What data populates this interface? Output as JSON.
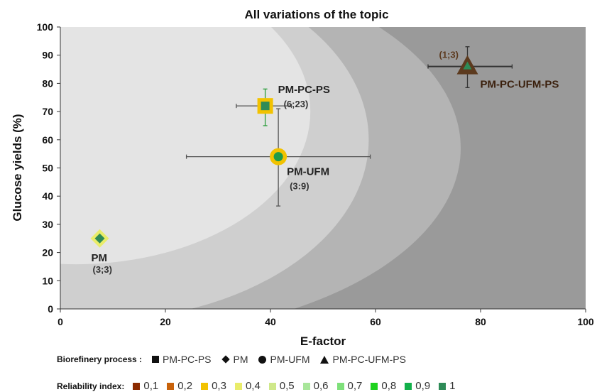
{
  "chart_data": {
    "type": "scatter",
    "title": "All variations of the topic",
    "xlabel": "E-factor",
    "ylabel": "Glucose yields (%)",
    "xlim": [
      0,
      100
    ],
    "ylim": [
      0,
      100
    ],
    "x_ticks": [
      "0",
      "20",
      "40",
      "60",
      "80",
      "100"
    ],
    "y_ticks": [
      "0",
      "10",
      "20",
      "30",
      "40",
      "50",
      "60",
      "70",
      "80",
      "90",
      "100"
    ],
    "grid": false,
    "background_zones": [
      "#9a9a9a",
      "#b4b4b4",
      "#cfcfcf",
      "#e4e4e4"
    ],
    "points": [
      {
        "label": "PM-PC-PS",
        "annotation": "(6;23)",
        "marker": "square",
        "x": 39,
        "y": 72,
        "x_err": [
          33.5,
          44
        ],
        "y_err": [
          65,
          78
        ],
        "fill": "#2e8b57",
        "halo": "#f2c200"
      },
      {
        "label": "PM",
        "annotation": "(3;3)",
        "marker": "diamond",
        "x": 7.5,
        "y": 25,
        "fill": "#2e8b57",
        "halo": "#e9ec6a"
      },
      {
        "label": "PM-UFM",
        "annotation": "(3:9)",
        "marker": "circle",
        "x": 41.5,
        "y": 54,
        "x_err": [
          24,
          59
        ],
        "y_err": [
          36.5,
          71
        ],
        "fill": "#1f9b4a",
        "halo": "#f2c200"
      },
      {
        "label": "PM-PC-UFM-PS",
        "annotation": "(1;3)",
        "marker": "triangle",
        "x": 77.5,
        "y": 86,
        "x_err": [
          70,
          86
        ],
        "y_err": [
          78.5,
          93
        ],
        "fill": "#5c3a1e",
        "inner": "#2e8b57"
      }
    ],
    "legend_process": {
      "title": "Biorefinery process :",
      "entries": [
        {
          "marker": "square",
          "label": "PM-PC-PS"
        },
        {
          "marker": "diamond",
          "label": "PM"
        },
        {
          "marker": "circle",
          "label": "PM-UFM"
        },
        {
          "marker": "triangle",
          "label": "PM-PC-UFM-PS"
        }
      ]
    },
    "legend_reliability": {
      "title": "Reliability index:",
      "entries": [
        {
          "label": "0,1",
          "color": "#8b2a00"
        },
        {
          "label": "0,2",
          "color": "#c8620a"
        },
        {
          "label": "0,3",
          "color": "#f2c200"
        },
        {
          "label": "0,4",
          "color": "#e9ec6a"
        },
        {
          "label": "0,5",
          "color": "#cfe88a"
        },
        {
          "label": "0,6",
          "color": "#a8e69a"
        },
        {
          "label": "0,7",
          "color": "#7ee07a"
        },
        {
          "label": "0,8",
          "color": "#1ed21e"
        },
        {
          "label": "0,9",
          "color": "#12b04a"
        },
        {
          "label": "1",
          "color": "#2e8b57"
        }
      ]
    }
  }
}
